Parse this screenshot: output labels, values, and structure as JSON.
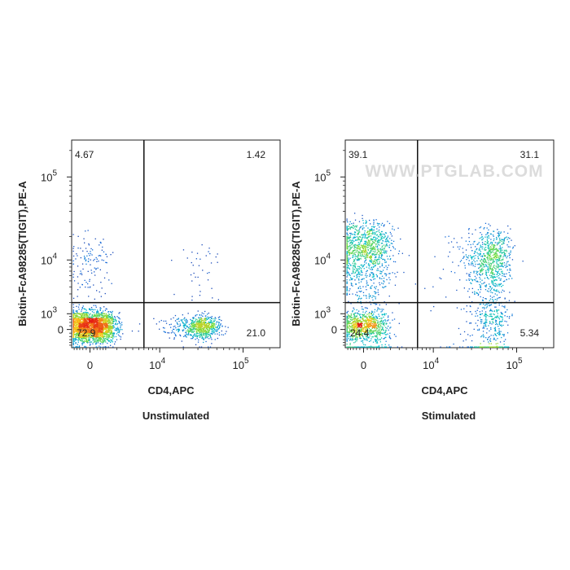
{
  "watermark": "WWW.PTGLAB.COM",
  "chart_data": [
    {
      "type": "scatter",
      "title": "Unstimulated",
      "xlabel": "CD4,APC",
      "ylabel": "Biotin-FcA98285(TIGIT),PE-A",
      "x_scale": "biexponential",
      "y_scale": "biexponential",
      "x_tick_labels": [
        "0",
        "10^4",
        "10^5"
      ],
      "y_tick_labels": [
        "0",
        "10^3",
        "10^4",
        "10^5"
      ],
      "quadrant_gate": {
        "x": 6000,
        "y": 2000
      },
      "quadrants": [
        {
          "name": "Q1",
          "position": "top-left",
          "value": "4.67"
        },
        {
          "name": "Q2",
          "position": "top-right",
          "value": "1.42"
        },
        {
          "name": "Q3",
          "position": "bottom-right",
          "value": "21.0"
        },
        {
          "name": "Q4",
          "position": "bottom-left",
          "value": "72.9"
        }
      ],
      "populations": [
        {
          "x_center": 0,
          "y_center": 200,
          "x_spread": 700,
          "y_spread": 400,
          "weight": 72.9
        },
        {
          "x_center": 0,
          "y_center": 8000,
          "x_spread": 500,
          "y_spread": 5000,
          "weight": 4.67
        },
        {
          "x_center": 32000,
          "y_center": 150,
          "x_spread": 8000,
          "y_spread": 300,
          "weight": 21.0
        },
        {
          "x_center": 30000,
          "y_center": 7000,
          "x_spread": 9000,
          "y_spread": 5000,
          "weight": 1.42
        }
      ]
    },
    {
      "type": "scatter",
      "title": "Stimulated",
      "xlabel": "CD4,APC",
      "ylabel": "Biotin-FcA98285(TIGIT),PE-A",
      "x_scale": "biexponential",
      "y_scale": "biexponential",
      "x_tick_labels": [
        "0",
        "10^4",
        "10^5"
      ],
      "y_tick_labels": [
        "0",
        "10^3",
        "10^4",
        "10^5"
      ],
      "quadrant_gate": {
        "x": 6000,
        "y": 2000
      },
      "quadrants": [
        {
          "name": "Q1",
          "position": "top-left",
          "value": "39.1"
        },
        {
          "name": "Q2",
          "position": "top-right",
          "value": "31.1"
        },
        {
          "name": "Q3",
          "position": "bottom-right",
          "value": "5.34"
        },
        {
          "name": "Q4",
          "position": "bottom-left",
          "value": "24.4"
        }
      ],
      "populations": [
        {
          "x_center": 0,
          "y_center": 12000,
          "x_spread": 800,
          "y_spread": 7000,
          "weight": 39.1
        },
        {
          "x_center": 0,
          "y_center": 200,
          "x_spread": 600,
          "y_spread": 400,
          "weight": 24.4
        },
        {
          "x_center": 50000,
          "y_center": 8000,
          "x_spread": 12000,
          "y_spread": 6000,
          "weight": 31.1
        },
        {
          "x_center": 50000,
          "y_center": 600,
          "x_spread": 12000,
          "y_spread": 600,
          "weight": 5.34
        }
      ]
    }
  ]
}
